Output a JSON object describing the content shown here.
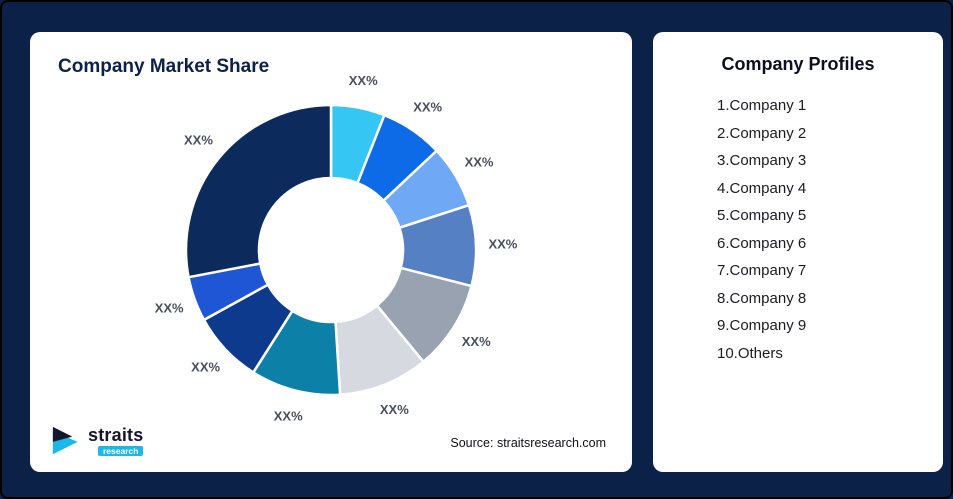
{
  "colors": {
    "background": "#0C2148",
    "card": "#FFFFFF",
    "title": "#0B2149",
    "data_label": "#474E5D",
    "accent_cyan": "#19B9E9",
    "logo_dark": "#15162A"
  },
  "left_card": {
    "title": "Company Market Share",
    "source": "Source: straitsresearch.com",
    "logo": {
      "name": "straits",
      "sub": "research"
    }
  },
  "right_card": {
    "title": "Company Profiles",
    "items": [
      "1.Company 1",
      "2.Company 2",
      "3.Company 3",
      "4.Company 4",
      "5.Company 5",
      "6.Company 6",
      "7.Company 7",
      "8.Company 8",
      "9.Company 9",
      "10.Others"
    ]
  },
  "chart_data": {
    "type": "pie",
    "variant": "donut",
    "title": "Company Market Share",
    "legend": "none",
    "start_angle_deg": 0,
    "direction": "clockwise",
    "labels": [
      "Company 1",
      "Company 2",
      "Company 3",
      "Company 4",
      "Company 5",
      "Company 6",
      "Company 7",
      "Company 8",
      "Company 9",
      "Others"
    ],
    "data_labels": [
      "XX%",
      "XX%",
      "XX%",
      "XX%",
      "XX%",
      "XX%",
      "XX%",
      "XX%",
      "XX%",
      "XX%"
    ],
    "values": [
      6,
      7,
      7,
      9,
      10,
      10,
      10,
      8,
      5,
      28
    ],
    "values_note": "slice sizes estimated from pixels; on-chart labels are XX% placeholders",
    "colors": [
      "#36C6F4",
      "#0D6BE8",
      "#6FA8F4",
      "#5580C4",
      "#99A2B0",
      "#D6DAE0",
      "#0C80A6",
      "#0D3A8C",
      "#1E56D6",
      "#0D2A5C"
    ]
  }
}
